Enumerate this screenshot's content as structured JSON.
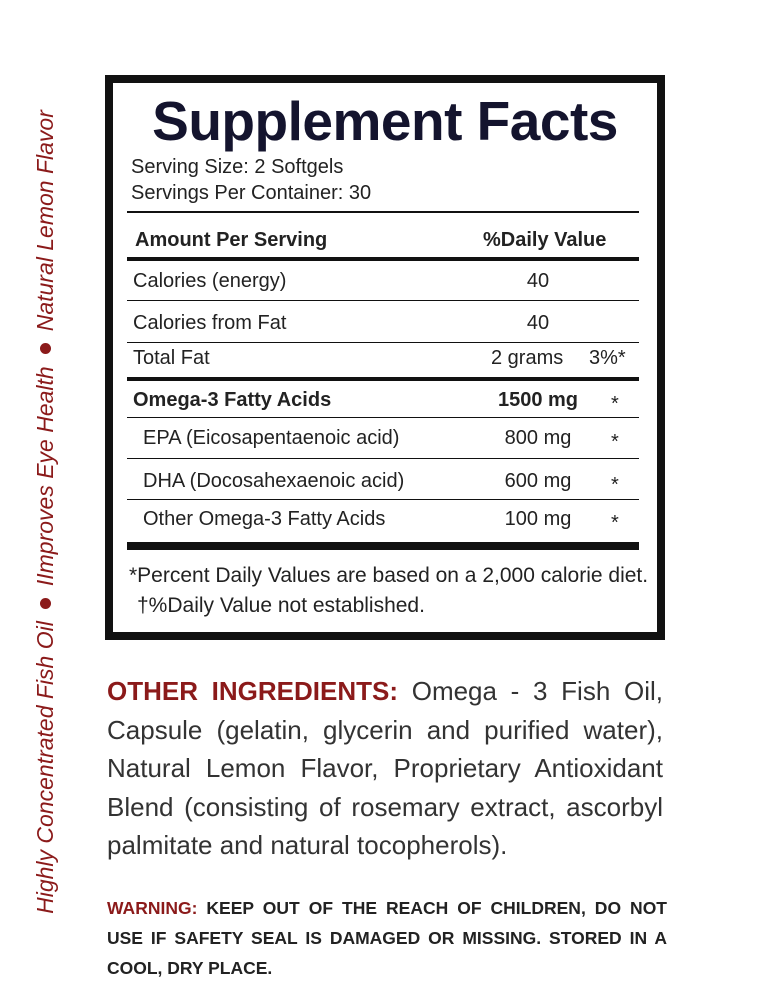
{
  "side_text": [
    "Highly Concentrated Fish Oil",
    "IImproves Eye Health",
    "Natural Lemon Flavor"
  ],
  "facts": {
    "title": "Supplement Facts",
    "serving_size": "Serving Size: 2 Softgels",
    "servings_per_container": "Servings Per Container: 30",
    "header": [
      "Amount Per Serving",
      "%Daily Value"
    ],
    "rows": [
      [
        "Calories (energy)",
        "40"
      ],
      [
        "Calories from Fat",
        "40"
      ],
      [
        "Total Fat",
        "2 grams",
        "3%*"
      ],
      [
        "Omega-3 Fatty Acids",
        "1500 mg",
        "*"
      ],
      [
        "EPA (Eicosapentaenoic acid)",
        "800 mg",
        "*"
      ],
      [
        "DHA (Docosahexaenoic acid)",
        "600 mg",
        "*"
      ],
      [
        "Other Omega-3 Fatty Acids",
        "100 mg",
        "*"
      ]
    ],
    "footnotes": [
      "*Percent Daily Values are based on a 2,000 calorie diet.",
      "†%Daily Value not established."
    ]
  },
  "other_ingredients": {
    "label": "OTHER INGREDIENTS:",
    "text": "Omega - 3 Fish Oil, Capsule (gelatin, glycerin and purified water), Natural Lemon Flavor, Proprietary Antioxidant Blend (consisting of rosemary extract, ascorbyl palmitate and natural tocopherols)."
  },
  "warning": {
    "label": "WARNING:",
    "text": "KEEP OUT OF THE REACH OF CHILDREN, DO NOT USE IF SAFETY SEAL IS DAMAGED OR MISSING. STORED IN A COOL, DRY PLACE."
  }
}
